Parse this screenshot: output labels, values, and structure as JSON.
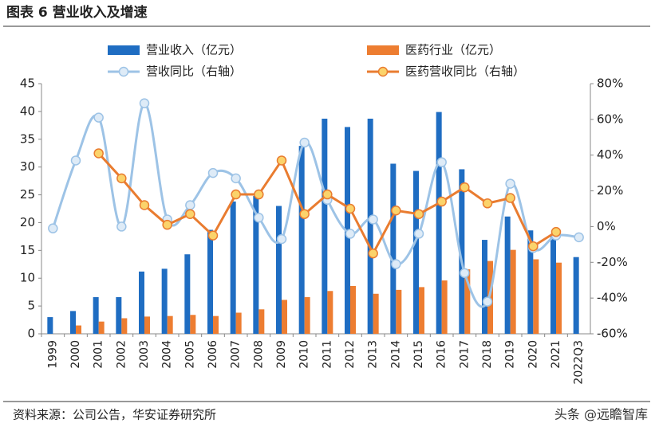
{
  "chart_data": {
    "type": "bar",
    "title": "图表 6 营业收入及增速",
    "source": "资料来源：公司公告，华安证券研究所",
    "watermark": "头条 @远瞻智库",
    "categories": [
      "1999",
      "2000",
      "2001",
      "2002",
      "2003",
      "2004",
      "2005",
      "2006",
      "2007",
      "2008",
      "2009",
      "2010",
      "2011",
      "2012",
      "2013",
      "2014",
      "2015",
      "2016",
      "2017",
      "2018",
      "2019",
      "2020",
      "2021",
      "2022Q3"
    ],
    "ylim": [
      0,
      45
    ],
    "yticks": [
      0,
      5,
      10,
      15,
      20,
      25,
      30,
      35,
      40,
      45
    ],
    "y2lim": [
      -60,
      80
    ],
    "y2ticks": [
      {
        "value": -60,
        "label": "-60%"
      },
      {
        "value": -40,
        "label": "-40%"
      },
      {
        "value": -20,
        "label": "-20%"
      },
      {
        "value": 0,
        "label": "0%"
      },
      {
        "value": 20,
        "label": "20%"
      },
      {
        "value": 40,
        "label": "40%"
      },
      {
        "value": 60,
        "label": "60%"
      },
      {
        "value": 80,
        "label": "80%"
      }
    ],
    "series": [
      {
        "name": "营业收入（亿元）",
        "type": "bar",
        "color": "#1f6dc2",
        "values": [
          3.0,
          4.1,
          6.6,
          6.6,
          11.2,
          11.7,
          14.3,
          18.7,
          23.8,
          24.8,
          23.0,
          33.8,
          38.7,
          37.2,
          38.7,
          30.6,
          29.3,
          39.9,
          29.6,
          16.9,
          21.1,
          18.6,
          17.5,
          13.8
        ]
      },
      {
        "name": "医药行业（亿元）",
        "type": "bar",
        "color": "#ed7d31",
        "values": [
          null,
          1.5,
          2.2,
          2.8,
          3.1,
          3.2,
          3.4,
          3.2,
          3.8,
          4.4,
          6.1,
          6.6,
          7.7,
          8.6,
          7.2,
          7.9,
          8.4,
          9.6,
          11.6,
          13.1,
          15.1,
          13.4,
          12.8,
          null
        ]
      },
      {
        "name": "营收同比（右轴）",
        "type": "line",
        "axis": "y2",
        "color": "#9dc3e6",
        "marker_color": "#deebf7",
        "smooth": true,
        "values": [
          -1,
          37,
          61,
          0,
          69,
          4,
          12,
          30,
          27,
          5,
          -7,
          47,
          15,
          -4,
          4,
          -21,
          -4,
          36,
          -26,
          -42,
          24,
          -12,
          -5,
          -6
        ]
      },
      {
        "name": "医药营收同比（右轴）",
        "type": "line",
        "axis": "y2",
        "color": "#e97c30",
        "marker_color": "#fbd36b",
        "smooth": false,
        "values": [
          null,
          null,
          41,
          27,
          12,
          1,
          7,
          -5,
          18,
          18,
          37,
          7,
          18,
          10,
          -15,
          9,
          7,
          14,
          22,
          13,
          16,
          -11,
          -3,
          null
        ]
      }
    ]
  }
}
